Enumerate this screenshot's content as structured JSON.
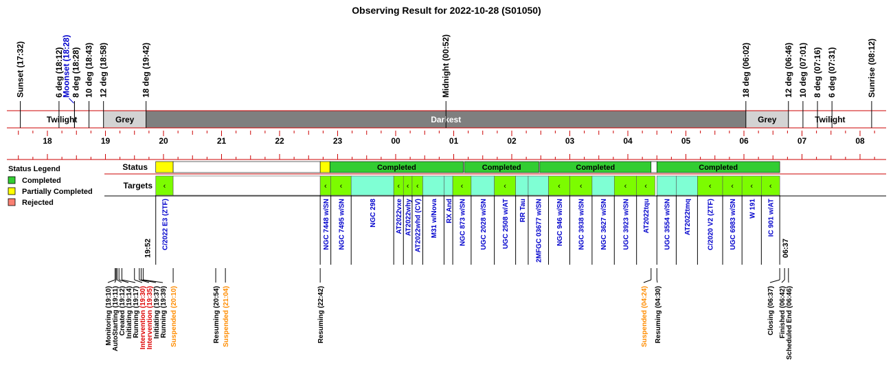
{
  "chart_data": {
    "type": "timeline",
    "title": "Observing Result for 2022-10-28 (S01050)",
    "x_range": [
      "17:20",
      "08:30"
    ],
    "markers": [
      {
        "label": "Sunset (17:32)",
        "time": "17:32",
        "color": "#000000"
      },
      {
        "label": "6 deg (18:12)",
        "time": "18:12",
        "color": "#000000"
      },
      {
        "label": "Moonset (18:28)",
        "time": "18:28",
        "color": "#0000cc",
        "offset": -12
      },
      {
        "label": "8 deg (18:28)",
        "time": "18:28",
        "color": "#000000",
        "offset": 2
      },
      {
        "label": "10 deg (18:43)",
        "time": "18:43",
        "color": "#000000"
      },
      {
        "label": "12 deg (18:58)",
        "time": "18:58",
        "color": "#000000"
      },
      {
        "label": "18 deg (19:42)",
        "time": "19:42",
        "color": "#000000"
      },
      {
        "label": "Midnight (00:52)",
        "time": "00:52",
        "color": "#000000"
      },
      {
        "label": "18 deg (06:02)",
        "time": "06:02",
        "color": "#000000"
      },
      {
        "label": "12 deg (06:46)",
        "time": "06:46",
        "color": "#000000"
      },
      {
        "label": "10 deg (07:01)",
        "time": "07:01",
        "color": "#000000"
      },
      {
        "label": "8 deg (07:16)",
        "time": "07:16",
        "color": "#000000"
      },
      {
        "label": "6 deg (07:31)",
        "time": "07:31",
        "color": "#000000"
      },
      {
        "label": "Sunrise (08:12)",
        "time": "08:12",
        "color": "#000000"
      }
    ],
    "periods": [
      {
        "label": "Twilight",
        "start": "17:32",
        "end": "18:58",
        "color": "#ffffff",
        "text_color": "#000000"
      },
      {
        "label": "Grey",
        "start": "18:58",
        "end": "19:42",
        "color": "#d3d3d3",
        "text_color": "#000000"
      },
      {
        "label": "Darkest",
        "start": "19:42",
        "end": "06:02",
        "color": "#7f7f7f",
        "text_color": "#ffffff"
      },
      {
        "label": "Grey",
        "start": "06:02",
        "end": "06:46",
        "color": "#d3d3d3",
        "text_color": "#000000"
      },
      {
        "label": "Twilight",
        "start": "06:46",
        "end": "08:12",
        "color": "#ffffff",
        "text_color": "#000000"
      }
    ],
    "hour_labels": [
      "18",
      "19",
      "20",
      "21",
      "22",
      "23",
      "00",
      "01",
      "02",
      "03",
      "04",
      "05",
      "06",
      "07",
      "08"
    ],
    "status_label": "Status",
    "targets_label": "Targets",
    "status_blocks": [
      {
        "start": "19:52",
        "end": "20:10",
        "status": "Partially Completed",
        "label": ""
      },
      {
        "start": "20:10",
        "end": "22:42",
        "status": "None",
        "label": ""
      },
      {
        "start": "22:42",
        "end": "22:52",
        "status": "Partially Completed",
        "label": ""
      },
      {
        "start": "22:52",
        "end": "01:10",
        "status": "Completed",
        "label": "Completed"
      },
      {
        "start": "01:11",
        "end": "02:28",
        "status": "Completed",
        "label": "Completed"
      },
      {
        "start": "02:29",
        "end": "04:24",
        "status": "Completed",
        "label": "Completed"
      },
      {
        "start": "04:24",
        "end": "04:30",
        "status": "None",
        "label": ""
      },
      {
        "start": "04:30",
        "end": "06:37",
        "status": "Completed",
        "label": "Completed"
      }
    ],
    "target_blocks": [
      {
        "start": "19:52",
        "end": "20:10",
        "name": "C/2022 E3 (ZTF)",
        "color": "#7cfc00",
        "arrow": true
      },
      {
        "start": "20:10",
        "end": "22:42",
        "name": "",
        "color": "#ffffff",
        "arrow": false
      },
      {
        "start": "22:42",
        "end": "22:53",
        "name": "NGC 7448 w/SN",
        "color": "#7cfc00",
        "arrow": true
      },
      {
        "start": "22:53",
        "end": "23:14",
        "name": "NGC 7495 w/SN",
        "color": "#7cfc00",
        "arrow": true
      },
      {
        "start": "23:14",
        "end": "23:58",
        "name": "NGC 298",
        "color": "#7fffd4",
        "arrow": false
      },
      {
        "start": "23:58",
        "end": "00:08",
        "name": "AT2022vxe",
        "color": "#7cfc00",
        "arrow": true
      },
      {
        "start": "00:08",
        "end": "00:17",
        "name": "AT2022why",
        "color": "#7cfc00",
        "arrow": true
      },
      {
        "start": "00:17",
        "end": "00:28",
        "name": "AT2022whd (CV)",
        "color": "#7cfc00",
        "arrow": true
      },
      {
        "start": "00:28",
        "end": "00:50",
        "name": "M31 w/Nova",
        "color": "#7fffd4",
        "arrow": false
      },
      {
        "start": "00:50",
        "end": "00:59",
        "name": "RX And",
        "color": "#7fffd4",
        "arrow": false
      },
      {
        "start": "00:59",
        "end": "01:18",
        "name": "NGC 873 w/SN",
        "color": "#7cfc00",
        "arrow": true
      },
      {
        "start": "01:18",
        "end": "01:42",
        "name": "UGC 2028 w/SN",
        "color": "#7fffd4",
        "arrow": false
      },
      {
        "start": "01:42",
        "end": "02:04",
        "name": "UGC 2508 w/AT",
        "color": "#7cfc00",
        "arrow": true
      },
      {
        "start": "02:04",
        "end": "02:17",
        "name": "RR Tau",
        "color": "#7fffd4",
        "arrow": false
      },
      {
        "start": "02:17",
        "end": "02:38",
        "name": "2MFGC 03677 w/SN",
        "color": "#7fffd4",
        "arrow": false
      },
      {
        "start": "02:38",
        "end": "03:00",
        "name": "NGC 946 w/SN",
        "color": "#7cfc00",
        "arrow": true
      },
      {
        "start": "03:00",
        "end": "03:23",
        "name": "NGC 3938 w/SN",
        "color": "#7cfc00",
        "arrow": true
      },
      {
        "start": "03:23",
        "end": "03:46",
        "name": "NGC 3627 w/SN",
        "color": "#7fffd4",
        "arrow": false
      },
      {
        "start": "03:46",
        "end": "04:09",
        "name": "UGC 3923 w/SN",
        "color": "#7cfc00",
        "arrow": true
      },
      {
        "start": "04:09",
        "end": "04:28",
        "name": "AT2022tqu",
        "color": "#7cfc00",
        "arrow": true
      },
      {
        "start": "04:30",
        "end": "04:50",
        "name": "UGC 3554 w/SN",
        "color": "#7fffd4",
        "arrow": false
      },
      {
        "start": "04:50",
        "end": "05:12",
        "name": "AT2022tmq",
        "color": "#7fffd4",
        "arrow": false
      },
      {
        "start": "05:12",
        "end": "05:38",
        "name": "C/2020 V2 (ZTF)",
        "color": "#7cfc00",
        "arrow": true
      },
      {
        "start": "05:38",
        "end": "05:58",
        "name": "UGC 6983 w/SN",
        "color": "#7cfc00",
        "arrow": true
      },
      {
        "start": "05:58",
        "end": "06:18",
        "name": "W 191",
        "color": "#7cfc00",
        "arrow": true
      },
      {
        "start": "06:18",
        "end": "06:37",
        "name": "IC 901 w/AT",
        "color": "#7cfc00",
        "arrow": true
      }
    ],
    "time_annotations": [
      {
        "label": "19:52",
        "time": "19:52"
      },
      {
        "label": "06:37",
        "time": "06:37"
      }
    ],
    "events": [
      {
        "label": "Monitoring (19:10)",
        "time": "19:10",
        "color": "#000000"
      },
      {
        "label": "AutoStarting (19:11)",
        "time": "19:11",
        "color": "#000000"
      },
      {
        "label": "Created (19:12)",
        "time": "19:12",
        "color": "#000000"
      },
      {
        "label": "Initiating (19:14)",
        "time": "19:14",
        "color": "#000000"
      },
      {
        "label": "Running (19:17)",
        "time": "19:17",
        "color": "#000000"
      },
      {
        "label": "Intervention (19:30)",
        "time": "19:30",
        "color": "#dd0000"
      },
      {
        "label": "Intervention (19:35)",
        "time": "19:35",
        "color": "#dd0000"
      },
      {
        "label": "Initiating (19:37)",
        "time": "19:37",
        "color": "#000000"
      },
      {
        "label": "Running (19:39)",
        "time": "19:39",
        "color": "#000000"
      },
      {
        "label": "Suspended (20:10)",
        "time": "20:10",
        "color": "#ff8c00"
      },
      {
        "label": "Resuming (20:54)",
        "time": "20:54",
        "color": "#000000"
      },
      {
        "label": "Suspended (21:04)",
        "time": "21:04",
        "color": "#ff8c00"
      },
      {
        "label": "Resuming (22:42)",
        "time": "22:42",
        "color": "#000000"
      },
      {
        "label": "Suspended (04:24)",
        "time": "04:24",
        "color": "#ff8c00"
      },
      {
        "label": "Resuming (04:30)",
        "time": "04:30",
        "color": "#000000"
      },
      {
        "label": "Closing (06:37)",
        "time": "06:37",
        "color": "#000000"
      },
      {
        "label": "Finished (06:42)",
        "time": "06:42",
        "color": "#000000"
      },
      {
        "label": "Scheduled End (06:46)",
        "time": "06:46",
        "color": "#000000"
      }
    ],
    "legend": {
      "title": "Status Legend",
      "placement": "left",
      "items": [
        {
          "label": "Completed",
          "color": "#32cd32"
        },
        {
          "label": "Partially Completed",
          "color": "#ffff00"
        },
        {
          "label": "Rejected",
          "color": "#fa8072"
        }
      ]
    },
    "status_colors": {
      "Completed": "#32cd32",
      "Partially Completed": "#ffff00",
      "Rejected": "#fa8072",
      "None": "#ffffff"
    },
    "axis_line_color": "#cc0000"
  }
}
